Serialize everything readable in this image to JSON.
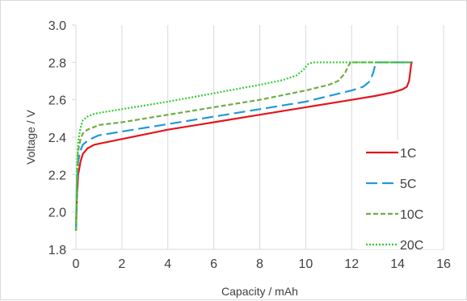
{
  "chart_data": {
    "type": "line",
    "title": "",
    "xlabel": "Capacity / mAh",
    "ylabel": "Voltage / V",
    "xlim": [
      0,
      16
    ],
    "ylim": [
      1.8,
      3.0
    ],
    "xticks": [
      "0",
      "2",
      "4",
      "6",
      "8",
      "10",
      "12",
      "14",
      "16"
    ],
    "yticks": [
      "1.8",
      "2.0",
      "2.2",
      "2.4",
      "2.6",
      "2.8",
      "3.0"
    ],
    "grid": "vertical",
    "legend": "bottom-right",
    "series": [
      {
        "name": "1C",
        "color": "#e4151c",
        "dash": "solid",
        "x": [
          0,
          0.05,
          0.1,
          0.2,
          0.3,
          0.5,
          0.8,
          1.2,
          2,
          4,
          6,
          8,
          10,
          12,
          13,
          13.8,
          14.2,
          14.4,
          14.5,
          14.55,
          14.6,
          14.65
        ],
        "y": [
          1.9,
          2.1,
          2.2,
          2.27,
          2.31,
          2.34,
          2.36,
          2.37,
          2.39,
          2.44,
          2.48,
          2.52,
          2.56,
          2.6,
          2.62,
          2.64,
          2.655,
          2.67,
          2.7,
          2.75,
          2.8,
          2.8
        ]
      },
      {
        "name": "5C",
        "color": "#1f9ad6",
        "dash": "long-dash",
        "x": [
          0,
          0.05,
          0.1,
          0.2,
          0.3,
          0.5,
          0.8,
          1,
          2,
          4,
          6,
          8,
          10,
          11,
          12,
          12.5,
          12.8,
          12.95,
          13.05,
          13.15,
          14.6
        ],
        "y": [
          1.9,
          2.15,
          2.27,
          2.33,
          2.36,
          2.38,
          2.4,
          2.41,
          2.43,
          2.47,
          2.51,
          2.55,
          2.59,
          2.62,
          2.65,
          2.67,
          2.7,
          2.75,
          2.8,
          2.8,
          2.8
        ]
      },
      {
        "name": "10C",
        "color": "#70ad47",
        "dash": "short-dash",
        "x": [
          0,
          0.05,
          0.1,
          0.2,
          0.3,
          0.5,
          0.8,
          1,
          2,
          4,
          6,
          8,
          10,
          11,
          11.4,
          11.7,
          11.85,
          11.95,
          14.6
        ],
        "y": [
          1.9,
          2.2,
          2.33,
          2.39,
          2.42,
          2.44,
          2.455,
          2.465,
          2.48,
          2.52,
          2.56,
          2.6,
          2.65,
          2.68,
          2.7,
          2.74,
          2.78,
          2.8,
          2.8
        ]
      },
      {
        "name": "20C",
        "color": "#33cc33",
        "dash": "dotted",
        "x": [
          0,
          0.05,
          0.1,
          0.2,
          0.3,
          0.5,
          0.8,
          1,
          2,
          4,
          6,
          8,
          9,
          9.6,
          9.9,
          10.1,
          10.3,
          14.6
        ],
        "y": [
          1.9,
          2.25,
          2.38,
          2.45,
          2.49,
          2.51,
          2.525,
          2.53,
          2.55,
          2.59,
          2.635,
          2.68,
          2.705,
          2.73,
          2.76,
          2.79,
          2.8,
          2.8
        ]
      }
    ]
  }
}
